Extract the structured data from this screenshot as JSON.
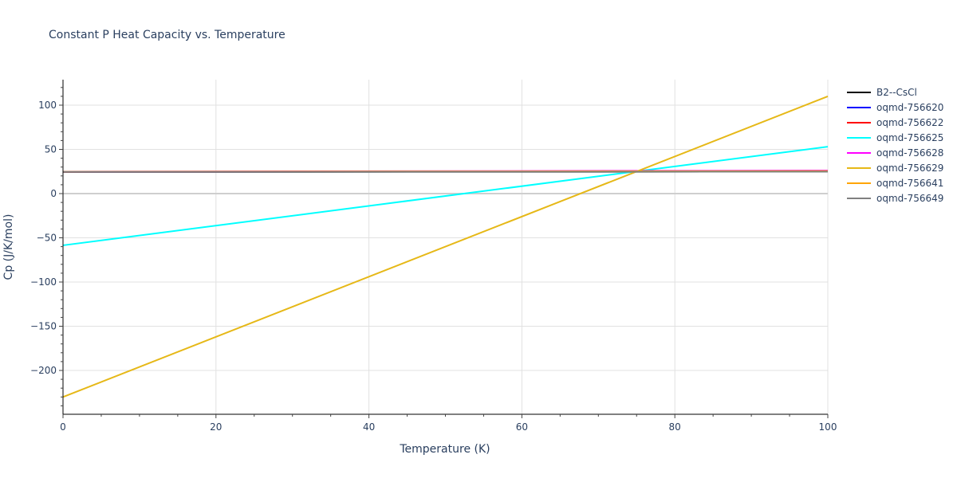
{
  "chart_data": {
    "type": "line",
    "title": "Constant P Heat Capacity vs. Temperature",
    "xlabel": "Temperature (K)",
    "ylabel": "Cp (J/K/mol)",
    "xlim": [
      0,
      100
    ],
    "ylim": [
      -250,
      128
    ],
    "xticks": [
      0,
      20,
      40,
      60,
      80,
      100
    ],
    "yticks": [
      -200,
      -150,
      -100,
      -50,
      0,
      50,
      100
    ],
    "ytick_labels": [
      "−200",
      "−150",
      "−100",
      "−50",
      "0",
      "50",
      "100"
    ],
    "grid": true,
    "legend_position": "right",
    "x": [
      0,
      100
    ],
    "series": [
      {
        "name": "B2--CsCl",
        "color": "#000000",
        "values": [
          24.5,
          24.8
        ]
      },
      {
        "name": "oqmd-756620",
        "color": "#0000ff",
        "values": [
          24.6,
          25.0
        ]
      },
      {
        "name": "oqmd-756622",
        "color": "#ff0000",
        "values": [
          24.6,
          25.2
        ]
      },
      {
        "name": "oqmd-756625",
        "color": "#00ffff",
        "values": [
          -58.5,
          53
        ]
      },
      {
        "name": "oqmd-756628",
        "color": "#ff00ff",
        "values": [
          24.8,
          26.0
        ]
      },
      {
        "name": "oqmd-756629",
        "color": "#e6b817",
        "values": [
          -230,
          110
        ]
      },
      {
        "name": "oqmd-756641",
        "color": "#ffa500",
        "values": [
          24.7,
          25.5
        ]
      },
      {
        "name": "oqmd-756649",
        "color": "#808080",
        "values": [
          24.5,
          24.8
        ]
      }
    ]
  }
}
